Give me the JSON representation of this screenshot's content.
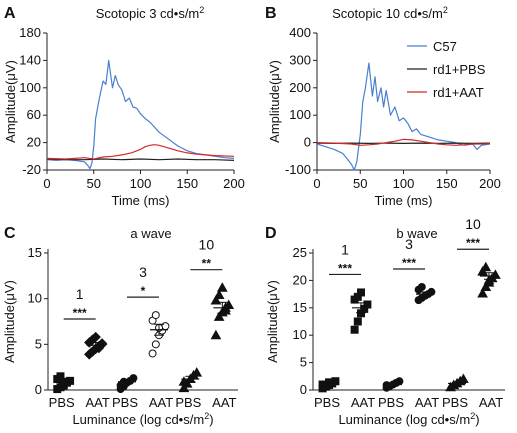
{
  "figure": {
    "panels": {
      "A": {
        "label": "A",
        "title": "Scotopic 3 cd•s/m",
        "title_sup": "2",
        "ylabel": "Amplitude(μV)",
        "xlabel": "Time (ms)"
      },
      "B": {
        "label": "B",
        "title": "Scotopic 10 cd•s/m",
        "title_sup": "2",
        "ylabel": "Amplitude(μV)",
        "xlabel": "Time (ms)"
      },
      "C": {
        "label": "C",
        "title": "a wave",
        "ylabel": "Amplitude(μV)",
        "xlabel": "Luminance (log cd•s/m",
        "xlabel_sup": "2",
        "xlabel_end": ")"
      },
      "D": {
        "label": "D",
        "title": "b wave",
        "ylabel": "Amplitude(μV)",
        "xlabel": "Luminance (log cd•s/m",
        "xlabel_sup": "2",
        "xlabel_end": ")"
      }
    },
    "colors": {
      "C57": "#4a7fd0",
      "rd1+PBS": "#222222",
      "rd1+AAT": "#d02a2a"
    }
  },
  "chart_data": [
    {
      "panel": "A",
      "type": "line",
      "title": "Scotopic 3 cd•s/m2",
      "xlabel": "Time (ms)",
      "ylabel": "Amplitude(μV)",
      "xlim": [
        0,
        200
      ],
      "ylim": [
        -20,
        180
      ],
      "xticks": [
        0,
        50,
        100,
        150,
        200
      ],
      "yticks": [
        -20,
        20,
        60,
        100,
        140,
        180
      ],
      "ytick_labels": [
        "-20",
        "20",
        "60",
        "100",
        "140",
        "180"
      ],
      "series": [
        {
          "key": "C57",
          "color": "#4a7fd0",
          "x": [
            0,
            10,
            20,
            30,
            40,
            44,
            46,
            48,
            50,
            52,
            56,
            60,
            63,
            66,
            70,
            73,
            76,
            80,
            84,
            88,
            92,
            96,
            100,
            105,
            110,
            120,
            130,
            140,
            150,
            160,
            170,
            180,
            190,
            200
          ],
          "y": [
            -5,
            -6,
            -5,
            -6,
            -8,
            -14,
            -18,
            -10,
            15,
            55,
            85,
            110,
            105,
            140,
            100,
            118,
            105,
            97,
            80,
            85,
            72,
            70,
            62,
            55,
            50,
            35,
            25,
            15,
            8,
            4,
            2,
            0,
            -2,
            -3
          ]
        },
        {
          "key": "rd1+PBS",
          "color": "#222222",
          "x": [
            0,
            20,
            40,
            60,
            80,
            100,
            120,
            140,
            160,
            180,
            200
          ],
          "y": [
            -4,
            -5,
            -5,
            -4,
            -5,
            -4,
            -5,
            -4,
            -5,
            -5,
            -6
          ]
        },
        {
          "key": "rd1+AAT",
          "color": "#d02a2a",
          "x": [
            0,
            20,
            40,
            50,
            60,
            70,
            80,
            90,
            100,
            105,
            110,
            115,
            120,
            130,
            140,
            150,
            160,
            170,
            180,
            200
          ],
          "y": [
            -3,
            -4,
            -2,
            -4,
            -1,
            0,
            2,
            5,
            10,
            14,
            16,
            17,
            16,
            12,
            8,
            5,
            3,
            2,
            1,
            0
          ]
        }
      ]
    },
    {
      "panel": "B",
      "type": "line",
      "title": "Scotopic 10 cd•s/m2",
      "xlabel": "Time (ms)",
      "ylabel": "Amplitude(μV)",
      "xlim": [
        0,
        200
      ],
      "ylim": [
        -100,
        400
      ],
      "xticks": [
        0,
        50,
        100,
        150,
        200
      ],
      "yticks": [
        -100,
        0,
        100,
        200,
        300,
        400
      ],
      "ytick_labels": [
        "-100",
        "0",
        "100",
        "200",
        "300",
        "400"
      ],
      "legend": {
        "position": "top-right",
        "entries": [
          "C57",
          "rd1+PBS",
          "rd1+AAT"
        ]
      },
      "series": [
        {
          "key": "C57",
          "name": "C57",
          "color": "#4a7fd0",
          "x": [
            0,
            10,
            20,
            30,
            35,
            40,
            43,
            46,
            50,
            53,
            56,
            60,
            64,
            67,
            70,
            74,
            77,
            80,
            85,
            90,
            95,
            100,
            105,
            110,
            115,
            120,
            130,
            140,
            150,
            160,
            170,
            180,
            185,
            190,
            200
          ],
          "y": [
            -5,
            -15,
            -25,
            -40,
            -60,
            -80,
            -100,
            -70,
            30,
            150,
            200,
            290,
            170,
            240,
            150,
            200,
            130,
            190,
            100,
            130,
            80,
            90,
            70,
            40,
            50,
            30,
            20,
            10,
            5,
            0,
            -10,
            -5,
            -25,
            -10,
            -5
          ]
        },
        {
          "key": "rd1+PBS",
          "name": "rd1+PBS",
          "color": "#222222",
          "x": [
            0,
            20,
            40,
            60,
            80,
            100,
            120,
            140,
            160,
            180,
            200
          ],
          "y": [
            -2,
            -3,
            -2,
            -3,
            -2,
            -3,
            -2,
            -3,
            -2,
            -3,
            -2
          ]
        },
        {
          "key": "rd1+AAT",
          "name": "rd1+AAT",
          "color": "#d02a2a",
          "x": [
            0,
            20,
            40,
            50,
            60,
            70,
            80,
            90,
            100,
            110,
            120,
            130,
            140,
            150,
            160,
            170,
            180,
            190,
            200
          ],
          "y": [
            0,
            -2,
            -5,
            -10,
            -8,
            -5,
            0,
            5,
            12,
            10,
            5,
            0,
            -5,
            -8,
            -10,
            -8,
            -5,
            -5,
            -4
          ]
        }
      ]
    },
    {
      "panel": "C",
      "type": "scatter",
      "title": "a wave",
      "xlabel": "Luminance (log cd•s/m2)",
      "ylabel": "Amplitude(μV)",
      "ylim": [
        0,
        15
      ],
      "yticks": [
        0,
        5,
        10,
        15
      ],
      "group_labels": [
        "1",
        "3",
        "10"
      ],
      "category_labels": [
        "PBS",
        "AAT"
      ],
      "significance": [
        "***",
        "*",
        "**"
      ],
      "groups": [
        {
          "label": "1",
          "marker_pbs": "square",
          "marker_aat": "diamond",
          "PBS": {
            "mean": 0.9,
            "err": 0.2,
            "values": [
              0.1,
              0.3,
              0.5,
              0.8,
              1.0,
              1.2,
              1.5,
              0.6,
              0.9
            ]
          },
          "AAT": {
            "mean": 4.9,
            "err": 0.3,
            "values": [
              3.9,
              4.2,
              4.5,
              4.8,
              5.0,
              5.2,
              5.5,
              5.8,
              4.6,
              5.1
            ]
          }
        },
        {
          "label": "3",
          "marker_pbs": "circle",
          "marker_aat": "circle",
          "PBS": {
            "mean": 0.9,
            "err": 0.2,
            "values": [
              0.1,
              0.4,
              0.8,
              1.0,
              1.3,
              0.5,
              0.9
            ]
          },
          "AAT": {
            "mean": 6.6,
            "err": 0.6,
            "values": [
              4.0,
              5.0,
              6.0,
              6.5,
              7.0,
              7.6,
              8.2,
              6.8
            ]
          }
        },
        {
          "label": "10",
          "marker_pbs": "triangle",
          "marker_aat": "triangle",
          "PBS": {
            "mean": 1.2,
            "err": 0.3,
            "values": [
              0.2,
              0.7,
              1.2,
              1.6,
              1.9,
              0.9
            ]
          },
          "AAT": {
            "mean": 9.0,
            "err": 0.6,
            "values": [
              6.0,
              8.0,
              8.5,
              9.0,
              9.3,
              9.8,
              10.4,
              11.2,
              8.7
            ]
          }
        }
      ]
    },
    {
      "panel": "D",
      "type": "scatter",
      "title": "b wave",
      "xlabel": "Luminance (log cd•s/m2)",
      "ylabel": "Amplitude(μV)",
      "ylim": [
        0,
        25
      ],
      "yticks": [
        0,
        5,
        10,
        15,
        20,
        25
      ],
      "group_labels": [
        "1",
        "3",
        "10"
      ],
      "category_labels": [
        "PBS",
        "AAT"
      ],
      "significance": [
        "***",
        "***",
        "***"
      ],
      "groups": [
        {
          "label": "1",
          "marker_pbs": "square",
          "marker_aat": "square",
          "PBS": {
            "mean": 1.0,
            "err": 0.2,
            "values": [
              0.3,
              0.6,
              0.9,
              1.2,
              1.6,
              1.0,
              0.8,
              1.4
            ]
          },
          "AAT": {
            "mean": 15.0,
            "err": 0.9,
            "values": [
              11.0,
              12.5,
              14.0,
              14.8,
              15.6,
              16.5,
              17.0,
              17.8
            ]
          }
        },
        {
          "label": "3",
          "marker_pbs": "circle",
          "marker_aat": "circle",
          "PBS": {
            "mean": 1.0,
            "err": 0.2,
            "values": [
              0.4,
              0.7,
              1.0,
              1.3,
              1.6,
              0.9
            ]
          },
          "AAT": {
            "mean": 17.5,
            "err": 0.4,
            "values": [
              16.4,
              16.8,
              17.2,
              17.5,
              17.9,
              18.3,
              18.8
            ]
          }
        },
        {
          "label": "10",
          "marker_pbs": "triangle",
          "marker_aat": "triangle",
          "PBS": {
            "mean": 1.2,
            "err": 0.2,
            "values": [
              0.5,
              0.9,
              1.2,
              1.6,
              2.0
            ]
          },
          "AAT": {
            "mean": 20.8,
            "err": 0.6,
            "values": [
              17.6,
              18.8,
              19.6,
              20.4,
              21.0,
              21.6,
              22.4,
              20.0
            ]
          }
        }
      ]
    }
  ]
}
